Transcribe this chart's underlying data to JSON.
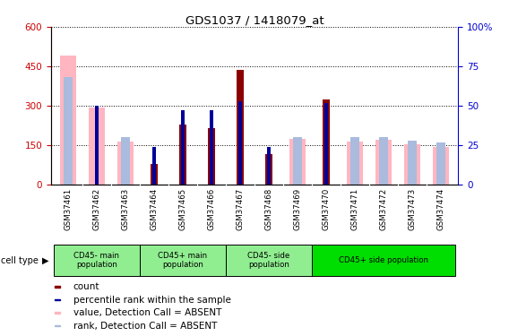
{
  "title": "GDS1037 / 1418079_at",
  "samples": [
    "GSM37461",
    "GSM37462",
    "GSM37463",
    "GSM37464",
    "GSM37465",
    "GSM37466",
    "GSM37467",
    "GSM37468",
    "GSM37469",
    "GSM37470",
    "GSM37471",
    "GSM37472",
    "GSM37473",
    "GSM37474"
  ],
  "count_values": [
    null,
    null,
    null,
    80,
    230,
    215,
    435,
    115,
    null,
    325,
    null,
    null,
    null,
    null
  ],
  "rank_values": [
    null,
    50,
    null,
    24,
    47,
    47,
    53,
    24,
    null,
    52,
    null,
    null,
    null,
    null
  ],
  "absent_value_values": [
    490,
    295,
    165,
    null,
    null,
    null,
    null,
    null,
    175,
    null,
    165,
    170,
    155,
    145
  ],
  "absent_rank_values": [
    68,
    null,
    30,
    null,
    null,
    null,
    null,
    null,
    30,
    null,
    30,
    30,
    28,
    27
  ],
  "ylim_left": [
    0,
    600
  ],
  "ylim_right": [
    0,
    100
  ],
  "yticks_left": [
    0,
    150,
    300,
    450,
    600
  ],
  "yticks_right": [
    0,
    25,
    50,
    75,
    100
  ],
  "groups": [
    {
      "label": "CD45- main\npopulation",
      "indices": [
        0,
        1,
        2
      ],
      "color": "#90EE90"
    },
    {
      "label": "CD45+ main\npopulation",
      "indices": [
        3,
        4,
        5
      ],
      "color": "#90EE90"
    },
    {
      "label": "CD45- side\npopulation",
      "indices": [
        6,
        7,
        8
      ],
      "color": "#90EE90"
    },
    {
      "label": "CD45+ side population",
      "indices": [
        9,
        10,
        11,
        12,
        13
      ],
      "color": "#00DD00"
    }
  ],
  "color_count": "#8B0000",
  "color_rank": "#000099",
  "color_absent_value": "#FFB6C1",
  "color_absent_rank": "#AABBDD",
  "background_color": "#ffffff",
  "left_axis_color": "#CC0000",
  "right_axis_color": "#0000CC",
  "legend_items": [
    {
      "color": "#8B0000",
      "label": "count"
    },
    {
      "color": "#000099",
      "label": "percentile rank within the sample"
    },
    {
      "color": "#FFB6C1",
      "label": "value, Detection Call = ABSENT"
    },
    {
      "color": "#AABBDD",
      "label": "rank, Detection Call = ABSENT"
    }
  ]
}
